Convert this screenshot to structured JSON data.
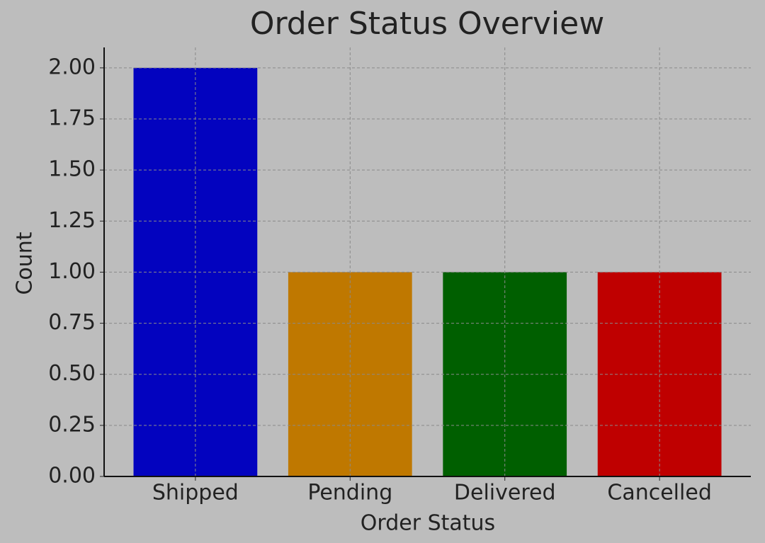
{
  "chart_data": {
    "type": "bar",
    "title": "Order Status Overview",
    "x_label": "Order Status",
    "y_label": "Count",
    "categories": [
      "Shipped",
      "Pending",
      "Delivered",
      "Cancelled"
    ],
    "values": [
      2,
      1,
      1,
      1
    ],
    "colors": [
      "#0303bf",
      "#bf7800",
      "#005f00",
      "#bf0000"
    ],
    "ylim": [
      0,
      2.1
    ],
    "yticks": [
      {
        "value": 0,
        "label": "0.00"
      },
      {
        "value": 0.25,
        "label": "0.25"
      },
      {
        "value": 0.5,
        "label": "0.50"
      },
      {
        "value": 0.75,
        "label": "0.75"
      },
      {
        "value": 1,
        "label": "1.00"
      },
      {
        "value": 1.25,
        "label": "1.25"
      },
      {
        "value": 1.5,
        "label": "1.50"
      },
      {
        "value": 1.75,
        "label": "1.75"
      },
      {
        "value": 2,
        "label": "2.00"
      }
    ],
    "grid": true
  }
}
